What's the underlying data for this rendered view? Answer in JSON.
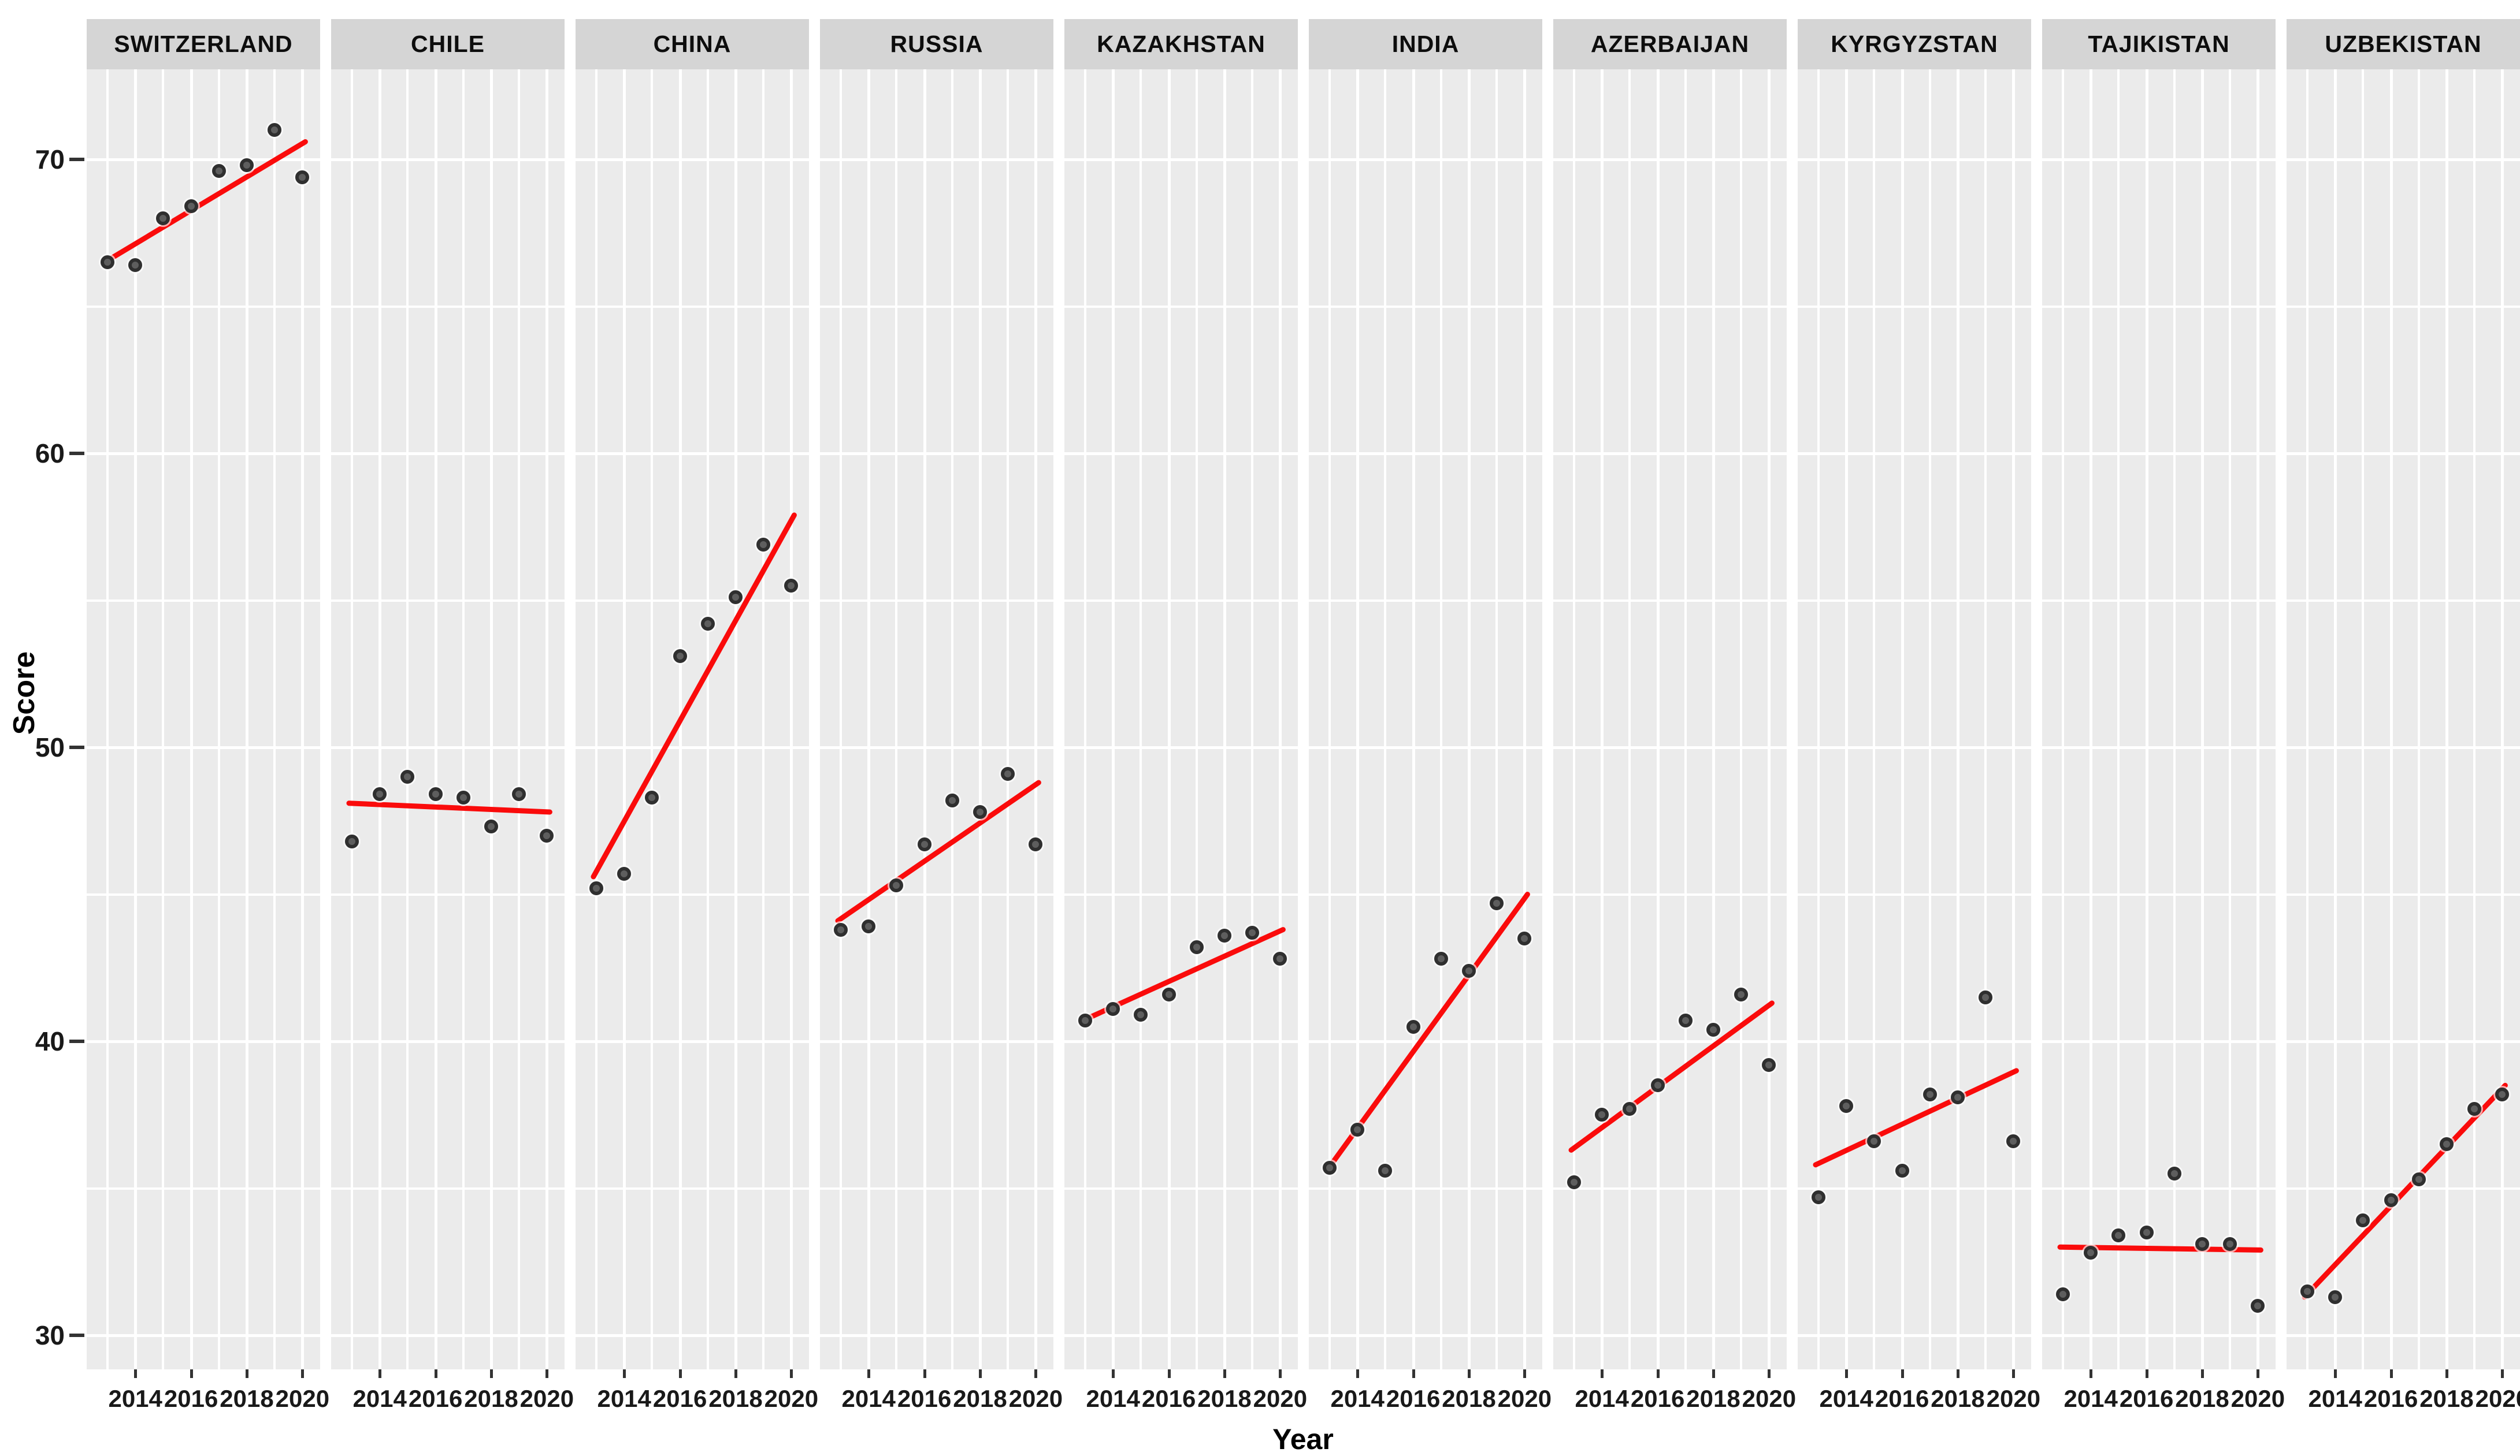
{
  "chart_data": {
    "type": "scatter",
    "title": "",
    "xlabel": "Year",
    "ylabel": "Score",
    "x": [
      2013,
      2014,
      2015,
      2016,
      2017,
      2018,
      2019,
      2020
    ],
    "x_tick_years": [
      2014,
      2016,
      2018,
      2020
    ],
    "x_tick_labels": [
      "2014",
      "2016",
      "2018",
      "2020"
    ],
    "y_ticks": [
      30,
      40,
      50,
      60,
      70
    ],
    "y_tick_labels": [
      "30",
      "40",
      "50",
      "60",
      "70"
    ],
    "ylim": [
      28.8,
      73.1
    ],
    "xlim": [
      2012.3,
      2020.7
    ],
    "grid": "on",
    "legend": "none",
    "point_style": "dark-gray-circle",
    "trend_style": "red-linear-fit",
    "facets": [
      {
        "label": "SWITZERLAND",
        "values": [
          66.5,
          66.4,
          68.0,
          68.4,
          69.6,
          69.8,
          71.0,
          69.4
        ],
        "trend": [
          66.5,
          70.6
        ]
      },
      {
        "label": "CHILE",
        "values": [
          46.8,
          48.4,
          49.0,
          48.4,
          48.3,
          47.3,
          48.4,
          47.0
        ],
        "trend": [
          48.1,
          47.8
        ]
      },
      {
        "label": "CHINA",
        "values": [
          45.2,
          45.7,
          48.3,
          53.1,
          54.2,
          55.1,
          56.9,
          55.5
        ],
        "trend": [
          45.6,
          57.9
        ]
      },
      {
        "label": "RUSSIA",
        "values": [
          43.8,
          43.9,
          45.3,
          46.7,
          48.2,
          47.8,
          49.1,
          46.7
        ],
        "trend": [
          44.1,
          48.8
        ]
      },
      {
        "label": "KAZAKHSTAN",
        "values": [
          40.7,
          41.1,
          40.9,
          41.6,
          43.2,
          43.6,
          43.7,
          42.8
        ],
        "trend": [
          40.7,
          43.8
        ]
      },
      {
        "label": "INDIA",
        "values": [
          35.7,
          37.0,
          35.6,
          40.5,
          42.8,
          42.4,
          44.7,
          43.5
        ],
        "trend": [
          35.6,
          45.0
        ]
      },
      {
        "label": "AZERBAIJAN",
        "values": [
          35.2,
          37.5,
          37.7,
          38.5,
          40.7,
          40.4,
          41.6,
          39.2
        ],
        "trend": [
          36.3,
          41.3
        ]
      },
      {
        "label": "KYRGYZSTAN",
        "values": [
          34.7,
          37.8,
          36.6,
          35.6,
          38.2,
          38.1,
          41.5,
          36.6
        ],
        "trend": [
          35.8,
          39.0
        ]
      },
      {
        "label": "TAJIKISTAN",
        "values": [
          31.4,
          32.8,
          33.4,
          33.5,
          35.5,
          33.1,
          33.1,
          31.0
        ],
        "trend": [
          33.0,
          32.9
        ]
      },
      {
        "label": "UZBEKISTAN",
        "values": [
          31.5,
          31.3,
          33.9,
          34.6,
          35.3,
          36.5,
          37.7,
          38.2
        ],
        "trend": [
          31.3,
          38.5
        ]
      }
    ]
  },
  "colors": {
    "panel_background": "#ebebeb",
    "strip_background": "#d5d5d5",
    "gridline": "#ffffff",
    "point": "#2f2f2f",
    "trend_line": "#fa0b0b",
    "axis_text": "#191919",
    "page_background": "#ffffff"
  }
}
